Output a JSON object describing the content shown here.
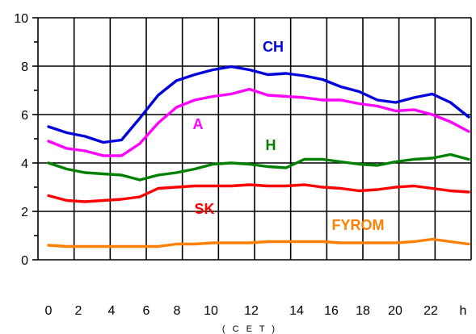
{
  "chart_data": {
    "type": "line",
    "title": "",
    "xlabel": "",
    "ylabel": "",
    "unit_label": "( C E T )",
    "x_tick_labels": [
      "0",
      "2",
      "4",
      "6",
      "8",
      "10",
      "12",
      "14",
      "16",
      "18",
      "20",
      "22",
      "h"
    ],
    "y_tick_labels": [
      "0",
      "2",
      "4",
      "6",
      "8",
      "10"
    ],
    "ylim": [
      0,
      10
    ],
    "xlim": [
      0,
      24
    ],
    "grid": true,
    "legend": "labels placed next to lines",
    "x": [
      0,
      1,
      2,
      3,
      4,
      5,
      6,
      7,
      8,
      9,
      10,
      11,
      12,
      13,
      14,
      15,
      16,
      17,
      18,
      19,
      20,
      21,
      22,
      23
    ],
    "series": [
      {
        "name": "CH",
        "color": "#0000dd",
        "values": [
          5.5,
          5.25,
          5.1,
          4.85,
          4.95,
          5.85,
          6.8,
          7.4,
          7.65,
          7.85,
          7.98,
          7.85,
          7.65,
          7.7,
          7.6,
          7.45,
          7.15,
          6.95,
          6.6,
          6.5,
          6.7,
          6.85,
          6.5,
          5.9
        ]
      },
      {
        "name": "A",
        "color": "#ff00ff",
        "values": [
          4.9,
          4.6,
          4.5,
          4.3,
          4.3,
          4.8,
          5.65,
          6.3,
          6.6,
          6.75,
          6.85,
          7.05,
          6.8,
          6.75,
          6.7,
          6.6,
          6.6,
          6.45,
          6.35,
          6.15,
          6.2,
          6.0,
          5.7,
          5.3
        ]
      },
      {
        "name": "H",
        "color": "#008000",
        "values": [
          4.0,
          3.75,
          3.6,
          3.55,
          3.5,
          3.3,
          3.5,
          3.6,
          3.75,
          3.95,
          4.0,
          3.95,
          3.85,
          3.8,
          4.15,
          4.15,
          4.05,
          3.95,
          3.9,
          4.05,
          4.15,
          4.2,
          4.35,
          4.15
        ]
      },
      {
        "name": "SK",
        "color": "#ff0000",
        "values": [
          2.65,
          2.45,
          2.4,
          2.45,
          2.5,
          2.6,
          2.95,
          3.0,
          3.05,
          3.05,
          3.05,
          3.1,
          3.05,
          3.05,
          3.1,
          3.0,
          2.95,
          2.85,
          2.9,
          3.0,
          3.05,
          2.95,
          2.85,
          2.8
        ]
      },
      {
        "name": "FYROM",
        "color": "#ff8000",
        "values": [
          0.6,
          0.55,
          0.55,
          0.55,
          0.55,
          0.55,
          0.55,
          0.65,
          0.65,
          0.7,
          0.7,
          0.7,
          0.75,
          0.75,
          0.75,
          0.75,
          0.7,
          0.7,
          0.7,
          0.7,
          0.75,
          0.85,
          0.75,
          0.65
        ]
      }
    ]
  }
}
